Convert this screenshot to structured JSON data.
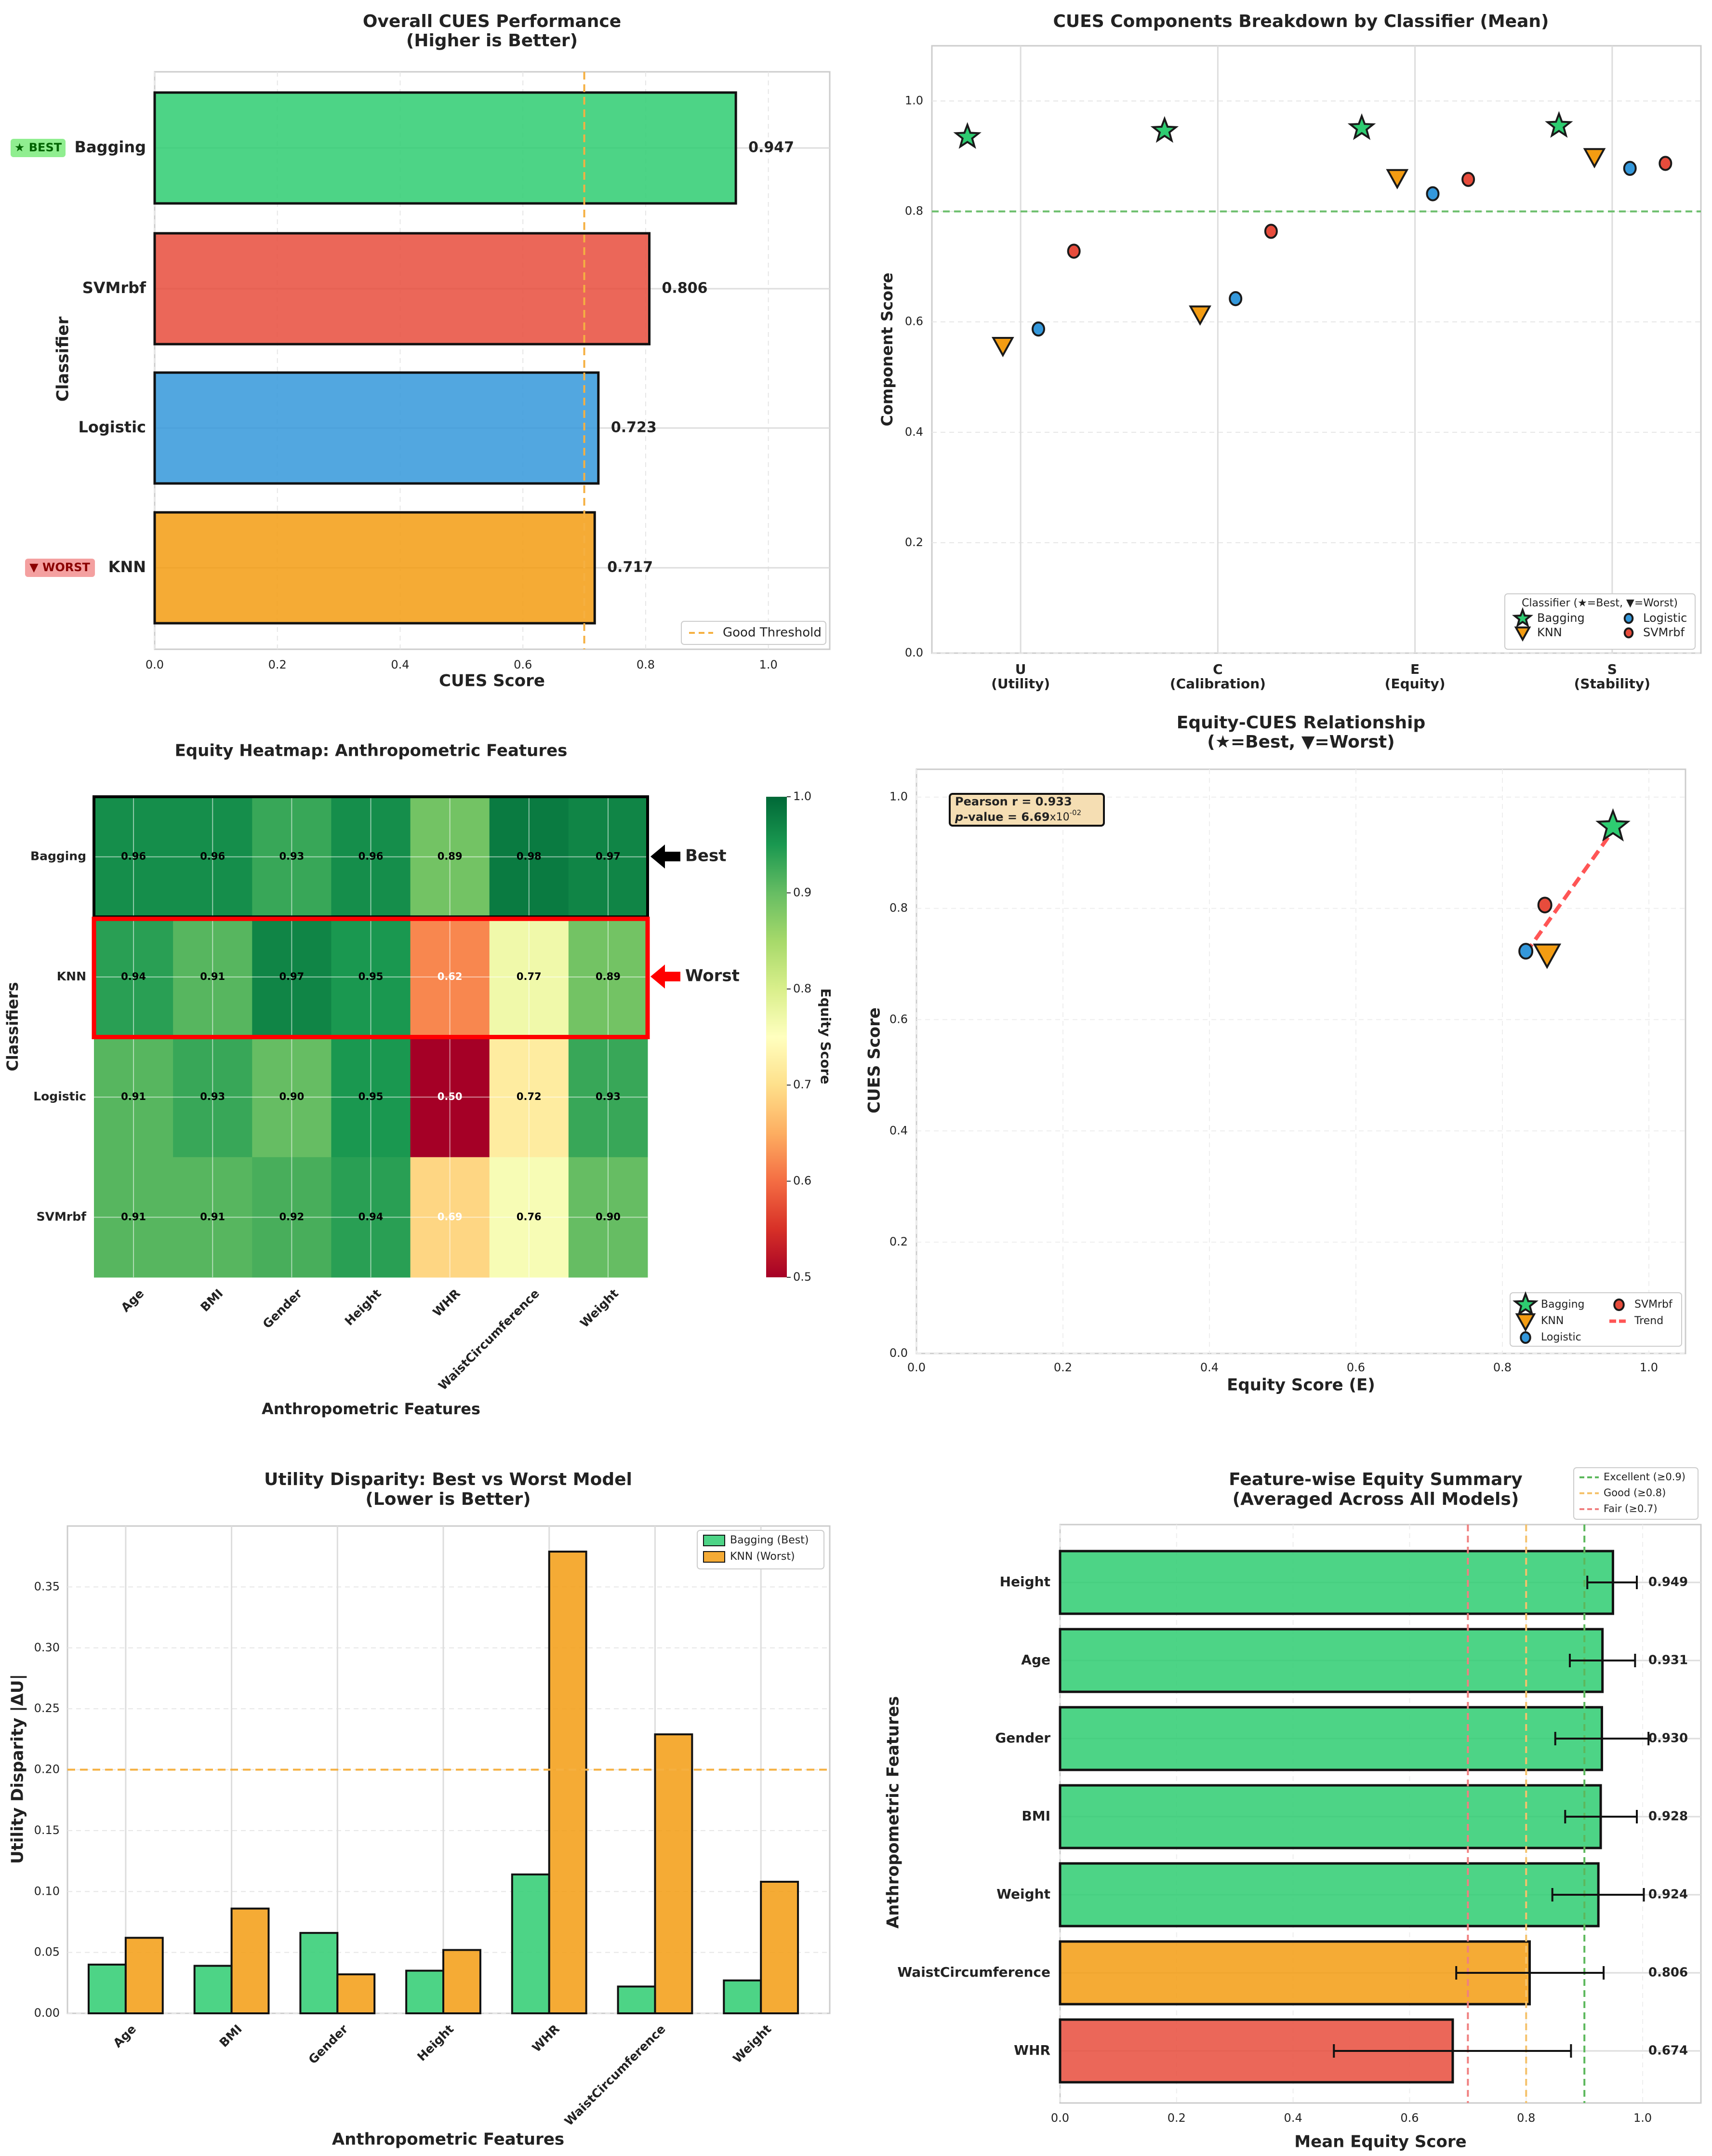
{
  "chart_data": [
    {
      "type": "bar",
      "orientation": "horizontal",
      "title": "Overall CUES Performance",
      "subtitle": "(Higher is Better)",
      "xlabel": "CUES Score",
      "ylabel": "Classifier",
      "categories": [
        "Bagging",
        "SVMrbf",
        "Logistic",
        "KNN"
      ],
      "values": [
        0.947,
        0.806,
        0.723,
        0.717
      ],
      "value_labels": [
        "0.947",
        "0.806",
        "0.723",
        "0.717"
      ],
      "colors": [
        "#2ecc71",
        "#e74c3c",
        "#3498db",
        "#f39c12"
      ],
      "xlim": [
        0,
        1.1
      ],
      "xticks": [
        0,
        0.2,
        0.4,
        0.6,
        0.8,
        1.0
      ],
      "xtick_labels": [
        "0.0",
        "0.2",
        "0.4",
        "0.6",
        "0.8",
        "1.0"
      ],
      "threshold": 0.7,
      "threshold_color": "#f5b041",
      "legend": [
        "Good Threshold"
      ],
      "legend_position": "lower-right",
      "badges": {
        "best": "★ BEST",
        "worst": "▼ WORST"
      }
    },
    {
      "type": "scatter",
      "title": "CUES Components Breakdown by Classifier (Mean)",
      "ylabel": "Component Score",
      "categories": [
        {
          "code": "U",
          "name": "(Utility)"
        },
        {
          "code": "C",
          "name": "(Calibration)"
        },
        {
          "code": "E",
          "name": "(Equity)"
        },
        {
          "code": "S",
          "name": "(Stability)"
        }
      ],
      "series": [
        {
          "name": "Bagging",
          "marker": "star",
          "color": "#2ecc71",
          "values": [
            0.935,
            0.946,
            0.951,
            0.955
          ]
        },
        {
          "name": "KNN",
          "marker": "triangle-down",
          "color": "#f39c12",
          "values": [
            0.557,
            0.614,
            0.861,
            0.899
          ]
        },
        {
          "name": "Logistic",
          "marker": "circle",
          "color": "#3498db",
          "values": [
            0.587,
            0.642,
            0.832,
            0.878
          ]
        },
        {
          "name": "SVMrbf",
          "marker": "circle",
          "color": "#e74c3c",
          "values": [
            0.728,
            0.764,
            0.858,
            0.887
          ]
        }
      ],
      "ylim": [
        0,
        1.1
      ],
      "yticks": [
        0,
        0.2,
        0.4,
        0.6,
        0.8,
        1.0
      ],
      "ytick_labels": [
        "0.0",
        "0.2",
        "0.4",
        "0.6",
        "0.8",
        "1.0"
      ],
      "reference_line": 0.8,
      "legend_title": "Classifier (★=Best, ▼=Worst)",
      "legend_position": "lower-right"
    },
    {
      "type": "heatmap",
      "title": "Equity Heatmap: Anthropometric Features",
      "xlabel": "Anthropometric Features",
      "ylabel": "Classifiers",
      "rows": [
        "Bagging",
        "KNN",
        "Logistic",
        "SVMrbf"
      ],
      "columns": [
        "Age",
        "BMI",
        "Gender",
        "Height",
        "WHR",
        "WaistCircumference",
        "Weight"
      ],
      "values": [
        [
          0.96,
          0.96,
          0.93,
          0.96,
          0.89,
          0.98,
          0.97
        ],
        [
          0.94,
          0.91,
          0.97,
          0.95,
          0.62,
          0.77,
          0.89
        ],
        [
          0.91,
          0.93,
          0.9,
          0.95,
          0.5,
          0.72,
          0.93
        ],
        [
          0.91,
          0.91,
          0.92,
          0.94,
          0.69,
          0.76,
          0.9
        ]
      ],
      "value_labels": [
        [
          "0.96",
          "0.96",
          "0.93",
          "0.96",
          "0.89",
          "0.98",
          "0.97"
        ],
        [
          "0.94",
          "0.91",
          "0.97",
          "0.95",
          "0.62",
          "0.77",
          "0.89"
        ],
        [
          "0.91",
          "0.93",
          "0.90",
          "0.95",
          "0.50",
          "0.72",
          "0.93"
        ],
        [
          "0.91",
          "0.91",
          "0.92",
          "0.94",
          "0.69",
          "0.76",
          "0.90"
        ]
      ],
      "colormap": "RdYlGn",
      "vmin": 0.5,
      "vmax": 1.0,
      "colorbar_label": "Equity Score",
      "colorbar_ticks": [
        "0.5",
        "0.6",
        "0.7",
        "0.8",
        "0.9",
        "1.0"
      ],
      "annotations": {
        "best": "Best",
        "worst": "Worst"
      }
    },
    {
      "type": "scatter",
      "title": "Equity-CUES Relationship",
      "subtitle": "(★=Best, ▼=Worst)",
      "xlabel": "Equity Score (E)",
      "ylabel": "CUES Score",
      "points": [
        {
          "name": "Bagging",
          "marker": "star",
          "color": "#2ecc71",
          "x": 0.951,
          "y": 0.947
        },
        {
          "name": "KNN",
          "marker": "triangle-down",
          "color": "#f39c12",
          "x": 0.861,
          "y": 0.717
        },
        {
          "name": "Logistic",
          "marker": "circle",
          "color": "#3498db",
          "x": 0.832,
          "y": 0.723
        },
        {
          "name": "SVMrbf",
          "marker": "circle",
          "color": "#e74c3c",
          "x": 0.858,
          "y": 0.806
        }
      ],
      "trend": {
        "label": "Trend",
        "x": [
          0.832,
          0.951
        ],
        "y": [
          0.72,
          0.94
        ],
        "color": "#ff5555"
      },
      "stats": {
        "pearson": "Pearson r = 0.933",
        "p_italic": "p",
        "p_text": "-value = 6.69",
        "p_x": "x10",
        "p_exp": "-02"
      },
      "xlim": [
        0,
        1.05
      ],
      "ylim": [
        0,
        1.05
      ],
      "ticks": [
        0,
        0.2,
        0.4,
        0.6,
        0.8,
        1.0
      ],
      "tick_labels": [
        "0.0",
        "0.2",
        "0.4",
        "0.6",
        "0.8",
        "1.0"
      ],
      "legend_position": "lower-right"
    },
    {
      "type": "bar",
      "title": "Utility Disparity: Best vs Worst Model",
      "subtitle": "(Lower is Better)",
      "xlabel": "Anthropometric Features",
      "ylabel": "Utility Disparity |ΔU|",
      "categories": [
        "Age",
        "BMI",
        "Gender",
        "Height",
        "WHR",
        "WaistCircumference",
        "Weight"
      ],
      "series": [
        {
          "name": "Bagging (Best)",
          "color": "#2ecc71",
          "values": [
            0.04,
            0.039,
            0.066,
            0.035,
            0.114,
            0.022,
            0.027
          ]
        },
        {
          "name": "KNN (Worst)",
          "color": "#f39c12",
          "values": [
            0.062,
            0.086,
            0.032,
            0.052,
            0.379,
            0.229,
            0.108
          ]
        }
      ],
      "ylim": [
        0,
        0.4
      ],
      "yticks": [
        0,
        0.05,
        0.1,
        0.15,
        0.2,
        0.25,
        0.3,
        0.35
      ],
      "ytick_labels": [
        "0.00",
        "0.05",
        "0.10",
        "0.15",
        "0.20",
        "0.25",
        "0.30",
        "0.35"
      ],
      "threshold": 0.2,
      "legend_position": "upper-right"
    },
    {
      "type": "bar",
      "orientation": "horizontal",
      "title": "Feature-wise Equity Summary",
      "subtitle": "(Averaged Across All Models)",
      "xlabel": "Mean Equity Score",
      "ylabel": "Anthropometric Features",
      "categories": [
        "Height",
        "Age",
        "Gender",
        "BMI",
        "Weight",
        "WaistCircumference",
        "WHR"
      ],
      "values": [
        0.949,
        0.931,
        0.93,
        0.928,
        0.924,
        0.806,
        0.674
      ],
      "value_labels": [
        "0.949",
        "0.931",
        "0.930",
        "0.928",
        "0.924",
        "0.806",
        "0.674"
      ],
      "error_low": [
        0.905,
        0.875,
        0.85,
        0.867,
        0.845,
        0.68,
        0.47
      ],
      "error_high": [
        0.99,
        0.987,
        1.01,
        0.99,
        1.002,
        0.933,
        0.877
      ],
      "colors": [
        "#2ecc71",
        "#2ecc71",
        "#2ecc71",
        "#2ecc71",
        "#2ecc71",
        "#f39c12",
        "#e74c3c"
      ],
      "xlim": [
        0,
        1.1
      ],
      "xticks": [
        0,
        0.2,
        0.4,
        0.6,
        0.8,
        1.0
      ],
      "xtick_labels": [
        "0.0",
        "0.2",
        "0.4",
        "0.6",
        "0.8",
        "1.0"
      ],
      "reference_lines": [
        {
          "value": 0.9,
          "label": "Excellent (≥0.9)",
          "color": "#5cb85c"
        },
        {
          "value": 0.8,
          "label": "Good (≥0.8)",
          "color": "#f5c26b"
        },
        {
          "value": 0.7,
          "label": "Fair (≥0.7)",
          "color": "#f08080"
        }
      ],
      "legend_position": "upper-right"
    }
  ]
}
